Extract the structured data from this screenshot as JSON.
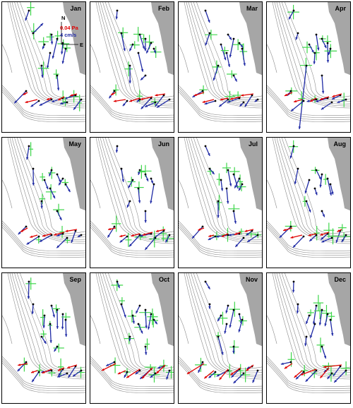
{
  "figure": {
    "panels": [
      {
        "month": "Jan"
      },
      {
        "month": "Feb"
      },
      {
        "month": "Mar"
      },
      {
        "month": "Apr"
      },
      {
        "month": "May"
      },
      {
        "month": "Jun"
      },
      {
        "month": "Jul"
      },
      {
        "month": "Aug"
      },
      {
        "month": "Sep"
      },
      {
        "month": "Oct"
      },
      {
        "month": "Nov"
      },
      {
        "month": "Dec"
      }
    ],
    "legend": {
      "north": "N",
      "east": "E",
      "stress_scale": "0.04 Pa",
      "velocity_scale": "4 cm/s"
    },
    "colors": {
      "stress": "#e00000",
      "velocity": "#1f2aa5",
      "variance": "#3dd64a",
      "land": "#a6a6a6",
      "contours": "#8c8c8c"
    }
  }
}
